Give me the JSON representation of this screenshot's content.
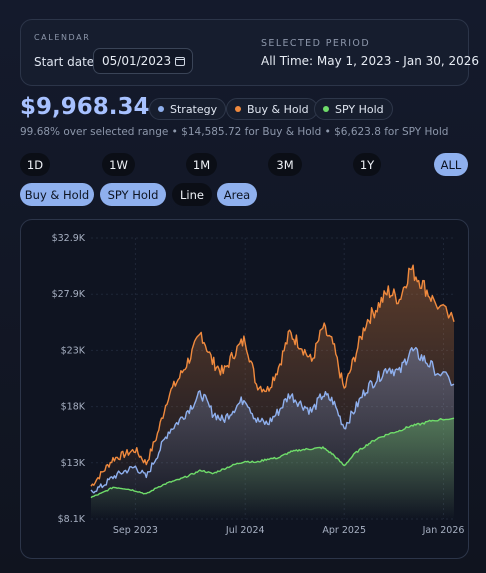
{
  "calendar": {
    "label": "CALENDAR",
    "start_label": "Start date",
    "start_value": "05/01/2023",
    "selected_label": "SELECTED PERIOD",
    "selected_value": "All Time: May 1, 2023 - Jan 30, 2026"
  },
  "summary": {
    "balance": "$9,968.34",
    "line": "99.68% over selected range • $14,585.72 for Buy & Hold • $6,623.8 for SPY Hold"
  },
  "legend": [
    {
      "label": "Strategy",
      "color": "#8fb0ee"
    },
    {
      "label": "Buy & Hold",
      "color": "#f08a3e"
    },
    {
      "label": "SPY Hold",
      "color": "#6fdc6a"
    }
  ],
  "ranges": [
    {
      "label": "1D",
      "active": false
    },
    {
      "label": "1W",
      "active": false
    },
    {
      "label": "1M",
      "active": false
    },
    {
      "label": "3M",
      "active": false
    },
    {
      "label": "1Y",
      "active": false
    },
    {
      "label": "ALL",
      "active": true
    }
  ],
  "toggles": [
    {
      "label": "Buy & Hold",
      "on": true
    },
    {
      "label": "SPY Hold",
      "on": true
    },
    {
      "label": "Line",
      "on": false
    },
    {
      "label": "Area",
      "on": true
    }
  ],
  "chart_data": {
    "type": "area",
    "x_ticks": [
      "Sep 2023",
      "Jul 2024",
      "Apr 2025",
      "Jan 2026"
    ],
    "y_ticks": [
      "$8.1K",
      "$13K",
      "$18K",
      "$23K",
      "$27.9K",
      "$32.9K"
    ],
    "ylim": [
      8100,
      32900
    ],
    "x_range": [
      "2023-05-01",
      "2026-01-30"
    ],
    "grid": true,
    "series": [
      {
        "name": "Buy & Hold",
        "color": "#f08a3e",
        "points": [
          [
            "2023-05-01",
            11000
          ],
          [
            "2023-06-01",
            12200
          ],
          [
            "2023-07-01",
            13400
          ],
          [
            "2023-08-01",
            13800
          ],
          [
            "2023-09-01",
            14200
          ],
          [
            "2023-10-01",
            13000
          ],
          [
            "2023-11-01",
            15600
          ],
          [
            "2023-12-01",
            19000
          ],
          [
            "2024-01-01",
            20600
          ],
          [
            "2024-02-01",
            22500
          ],
          [
            "2024-03-01",
            24500
          ],
          [
            "2024-04-01",
            22000
          ],
          [
            "2024-05-01",
            21000
          ],
          [
            "2024-06-01",
            22800
          ],
          [
            "2024-07-01",
            24000
          ],
          [
            "2024-08-01",
            20000
          ],
          [
            "2024-09-01",
            19500
          ],
          [
            "2024-10-01",
            21500
          ],
          [
            "2024-11-01",
            24500
          ],
          [
            "2024-12-01",
            23500
          ],
          [
            "2025-01-01",
            22000
          ],
          [
            "2025-02-01",
            25000
          ],
          [
            "2025-03-01",
            23500
          ],
          [
            "2025-04-01",
            19500
          ],
          [
            "2025-05-01",
            22500
          ],
          [
            "2025-06-01",
            25500
          ],
          [
            "2025-07-01",
            26800
          ],
          [
            "2025-08-01",
            28200
          ],
          [
            "2025-09-01",
            27500
          ],
          [
            "2025-10-01",
            30200
          ],
          [
            "2025-11-01",
            29000
          ],
          [
            "2025-12-01",
            27500
          ],
          [
            "2026-01-30",
            25500
          ]
        ]
      },
      {
        "name": "Strategy",
        "color": "#8fb0ee",
        "points": [
          [
            "2023-05-01",
            10500
          ],
          [
            "2023-06-01",
            11000
          ],
          [
            "2023-07-01",
            11800
          ],
          [
            "2023-08-01",
            12300
          ],
          [
            "2023-09-01",
            12700
          ],
          [
            "2023-10-01",
            11800
          ],
          [
            "2023-11-01",
            13800
          ],
          [
            "2023-12-01",
            15800
          ],
          [
            "2024-01-01",
            16800
          ],
          [
            "2024-02-01",
            18000
          ],
          [
            "2024-03-01",
            19200
          ],
          [
            "2024-04-01",
            17500
          ],
          [
            "2024-05-01",
            16800
          ],
          [
            "2024-06-01",
            17900
          ],
          [
            "2024-07-01",
            18800
          ],
          [
            "2024-08-01",
            16800
          ],
          [
            "2024-09-01",
            16500
          ],
          [
            "2024-10-01",
            17600
          ],
          [
            "2024-11-01",
            19100
          ],
          [
            "2024-12-01",
            18300
          ],
          [
            "2025-01-01",
            17600
          ],
          [
            "2025-02-01",
            19100
          ],
          [
            "2025-03-01",
            18500
          ],
          [
            "2025-04-01",
            16200
          ],
          [
            "2025-05-01",
            17800
          ],
          [
            "2025-06-01",
            19600
          ],
          [
            "2025-07-01",
            20500
          ],
          [
            "2025-08-01",
            21500
          ],
          [
            "2025-09-01",
            21000
          ],
          [
            "2025-10-01",
            23000
          ],
          [
            "2025-11-01",
            22400
          ],
          [
            "2025-12-01",
            21500
          ],
          [
            "2026-01-30",
            20000
          ]
        ]
      },
      {
        "name": "SPY Hold",
        "color": "#6fdc6a",
        "points": [
          [
            "2023-05-01",
            10000
          ],
          [
            "2023-06-01",
            10400
          ],
          [
            "2023-07-01",
            10900
          ],
          [
            "2023-08-01",
            10800
          ],
          [
            "2023-09-01",
            10600
          ],
          [
            "2023-10-01",
            10300
          ],
          [
            "2023-11-01",
            10900
          ],
          [
            "2023-12-01",
            11300
          ],
          [
            "2024-01-01",
            11600
          ],
          [
            "2024-02-01",
            12000
          ],
          [
            "2024-03-01",
            12400
          ],
          [
            "2024-04-01",
            12100
          ],
          [
            "2024-05-01",
            12500
          ],
          [
            "2024-06-01",
            12900
          ],
          [
            "2024-07-01",
            13200
          ],
          [
            "2024-08-01",
            13100
          ],
          [
            "2024-09-01",
            13400
          ],
          [
            "2024-10-01",
            13500
          ],
          [
            "2024-11-01",
            14000
          ],
          [
            "2024-12-01",
            14200
          ],
          [
            "2025-01-01",
            14300
          ],
          [
            "2025-02-01",
            14400
          ],
          [
            "2025-03-01",
            13800
          ],
          [
            "2025-04-01",
            12800
          ],
          [
            "2025-05-01",
            13900
          ],
          [
            "2025-06-01",
            14600
          ],
          [
            "2025-07-01",
            15200
          ],
          [
            "2025-08-01",
            15600
          ],
          [
            "2025-09-01",
            15900
          ],
          [
            "2025-10-01",
            16300
          ],
          [
            "2025-11-01",
            16500
          ],
          [
            "2025-12-01",
            16800
          ],
          [
            "2026-01-30",
            17000
          ]
        ]
      }
    ]
  }
}
